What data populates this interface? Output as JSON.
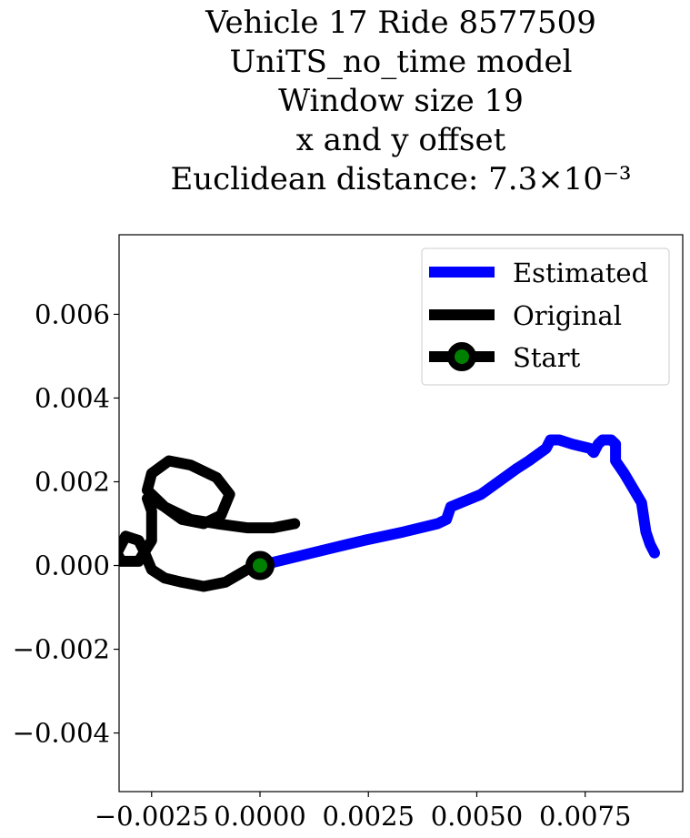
{
  "chart_data": {
    "type": "line",
    "title_lines": [
      "Vehicle 17 Ride 8577509",
      "UniTS_no_time model",
      "Window size 19",
      "x and y offset",
      "Euclidean distance: 7.3×10⁻³"
    ],
    "xlabel": "",
    "ylabel": "",
    "xlim": [
      -0.00325,
      0.00975
    ],
    "ylim": [
      -0.0054,
      0.0079
    ],
    "x_ticks": [
      -0.0025,
      0.0,
      0.0025,
      0.005,
      0.0075
    ],
    "x_tick_labels": [
      "−0.0025",
      "0.0000",
      "0.0025",
      "0.0050",
      "0.0075"
    ],
    "y_ticks": [
      -0.004,
      -0.002,
      0.0,
      0.002,
      0.004,
      0.006
    ],
    "y_tick_labels": [
      "−0.004",
      "−0.002",
      "0.000",
      "0.002",
      "0.004",
      "0.006"
    ],
    "legend_position": "upper right",
    "series": [
      {
        "name": "Estimated",
        "color": "#0000ff",
        "x": [
          0.0,
          0.0008,
          0.0016,
          0.0024,
          0.0033,
          0.0041,
          0.0043,
          0.0044,
          0.0051,
          0.0055,
          0.0059,
          0.0062,
          0.0066,
          0.0067,
          0.0069,
          0.0072,
          0.0076,
          0.0077,
          0.0078,
          0.0079,
          0.0081,
          0.0082,
          0.0082,
          0.0084,
          0.0088,
          0.0089,
          0.009,
          0.0091
        ],
        "y": [
          0.0,
          0.0002,
          0.0004,
          0.0006,
          0.0008,
          0.001,
          0.0011,
          0.0014,
          0.0017,
          0.002,
          0.0023,
          0.0025,
          0.0028,
          0.003,
          0.003,
          0.0029,
          0.0028,
          0.0027,
          0.0029,
          0.003,
          0.003,
          0.0029,
          0.0025,
          0.0022,
          0.0015,
          0.0008,
          0.0005,
          0.0003
        ]
      },
      {
        "name": "Original",
        "color": "#000000",
        "x": [
          0.0,
          -0.0003,
          -0.0008,
          -0.0013,
          -0.0018,
          -0.0022,
          -0.0025,
          -0.0027,
          -0.0028,
          -0.0031,
          -0.0032,
          -0.0033,
          -0.0032,
          -0.0028,
          -0.0025,
          -0.0025,
          -0.0026,
          -0.0026,
          -0.0025,
          -0.0022,
          -0.0018,
          -0.0013,
          -0.0009,
          -0.0007,
          -0.001,
          -0.0016,
          -0.0021,
          -0.0025,
          -0.0026,
          -0.0022,
          -0.0016,
          -0.001,
          -0.0003,
          0.0003,
          0.0008
        ],
        "y": [
          0.0,
          -0.0001,
          -0.0004,
          -0.0005,
          -0.0004,
          -0.0003,
          -0.0001,
          0.0004,
          0.0006,
          0.0007,
          0.0005,
          0.0003,
          0.0001,
          0.0001,
          0.0006,
          0.0013,
          0.0016,
          0.0016,
          0.0016,
          0.0014,
          0.0011,
          0.001,
          0.0012,
          0.0017,
          0.0021,
          0.0024,
          0.0025,
          0.0022,
          0.0018,
          0.0014,
          0.0011,
          0.001,
          0.0009,
          0.0009,
          0.001
        ]
      }
    ],
    "start_marker": {
      "name": "Start",
      "x": 0.0,
      "y": 0.0,
      "line_color": "#000000",
      "face_color": "#008000",
      "edge_color": "#000000"
    }
  }
}
